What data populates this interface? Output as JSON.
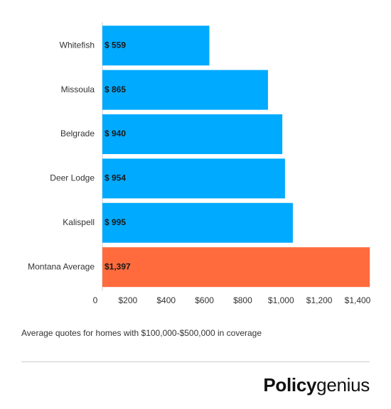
{
  "chart_data": {
    "type": "bar",
    "orientation": "horizontal",
    "categories": [
      "Whitefish",
      "Missoula",
      "Belgrade",
      "Deer Lodge",
      "Kalispell",
      "Montana Average"
    ],
    "values": [
      559,
      865,
      940,
      954,
      995,
      1397
    ],
    "value_labels": [
      "$ 559",
      "$ 865",
      "$ 940",
      "$ 954",
      "$ 995",
      "$1,397"
    ],
    "bar_colors": [
      "#00aaff",
      "#00aaff",
      "#00aaff",
      "#00aaff",
      "#00aaff",
      "#ff6b3d"
    ],
    "xlim": [
      0,
      1400
    ],
    "x_ticks": [
      0,
      200,
      400,
      600,
      800,
      1000,
      1200,
      1400
    ],
    "x_tick_labels": [
      "0",
      "$200",
      "$400",
      "$600",
      "$800",
      "$1,000",
      "$1,200",
      "$1,400"
    ],
    "grid": false,
    "title": "",
    "xlabel": "",
    "ylabel": ""
  },
  "caption": "Average quotes for homes with $100,000-$500,000 in coverage",
  "brand": {
    "bold": "Policy",
    "light": "genius"
  }
}
